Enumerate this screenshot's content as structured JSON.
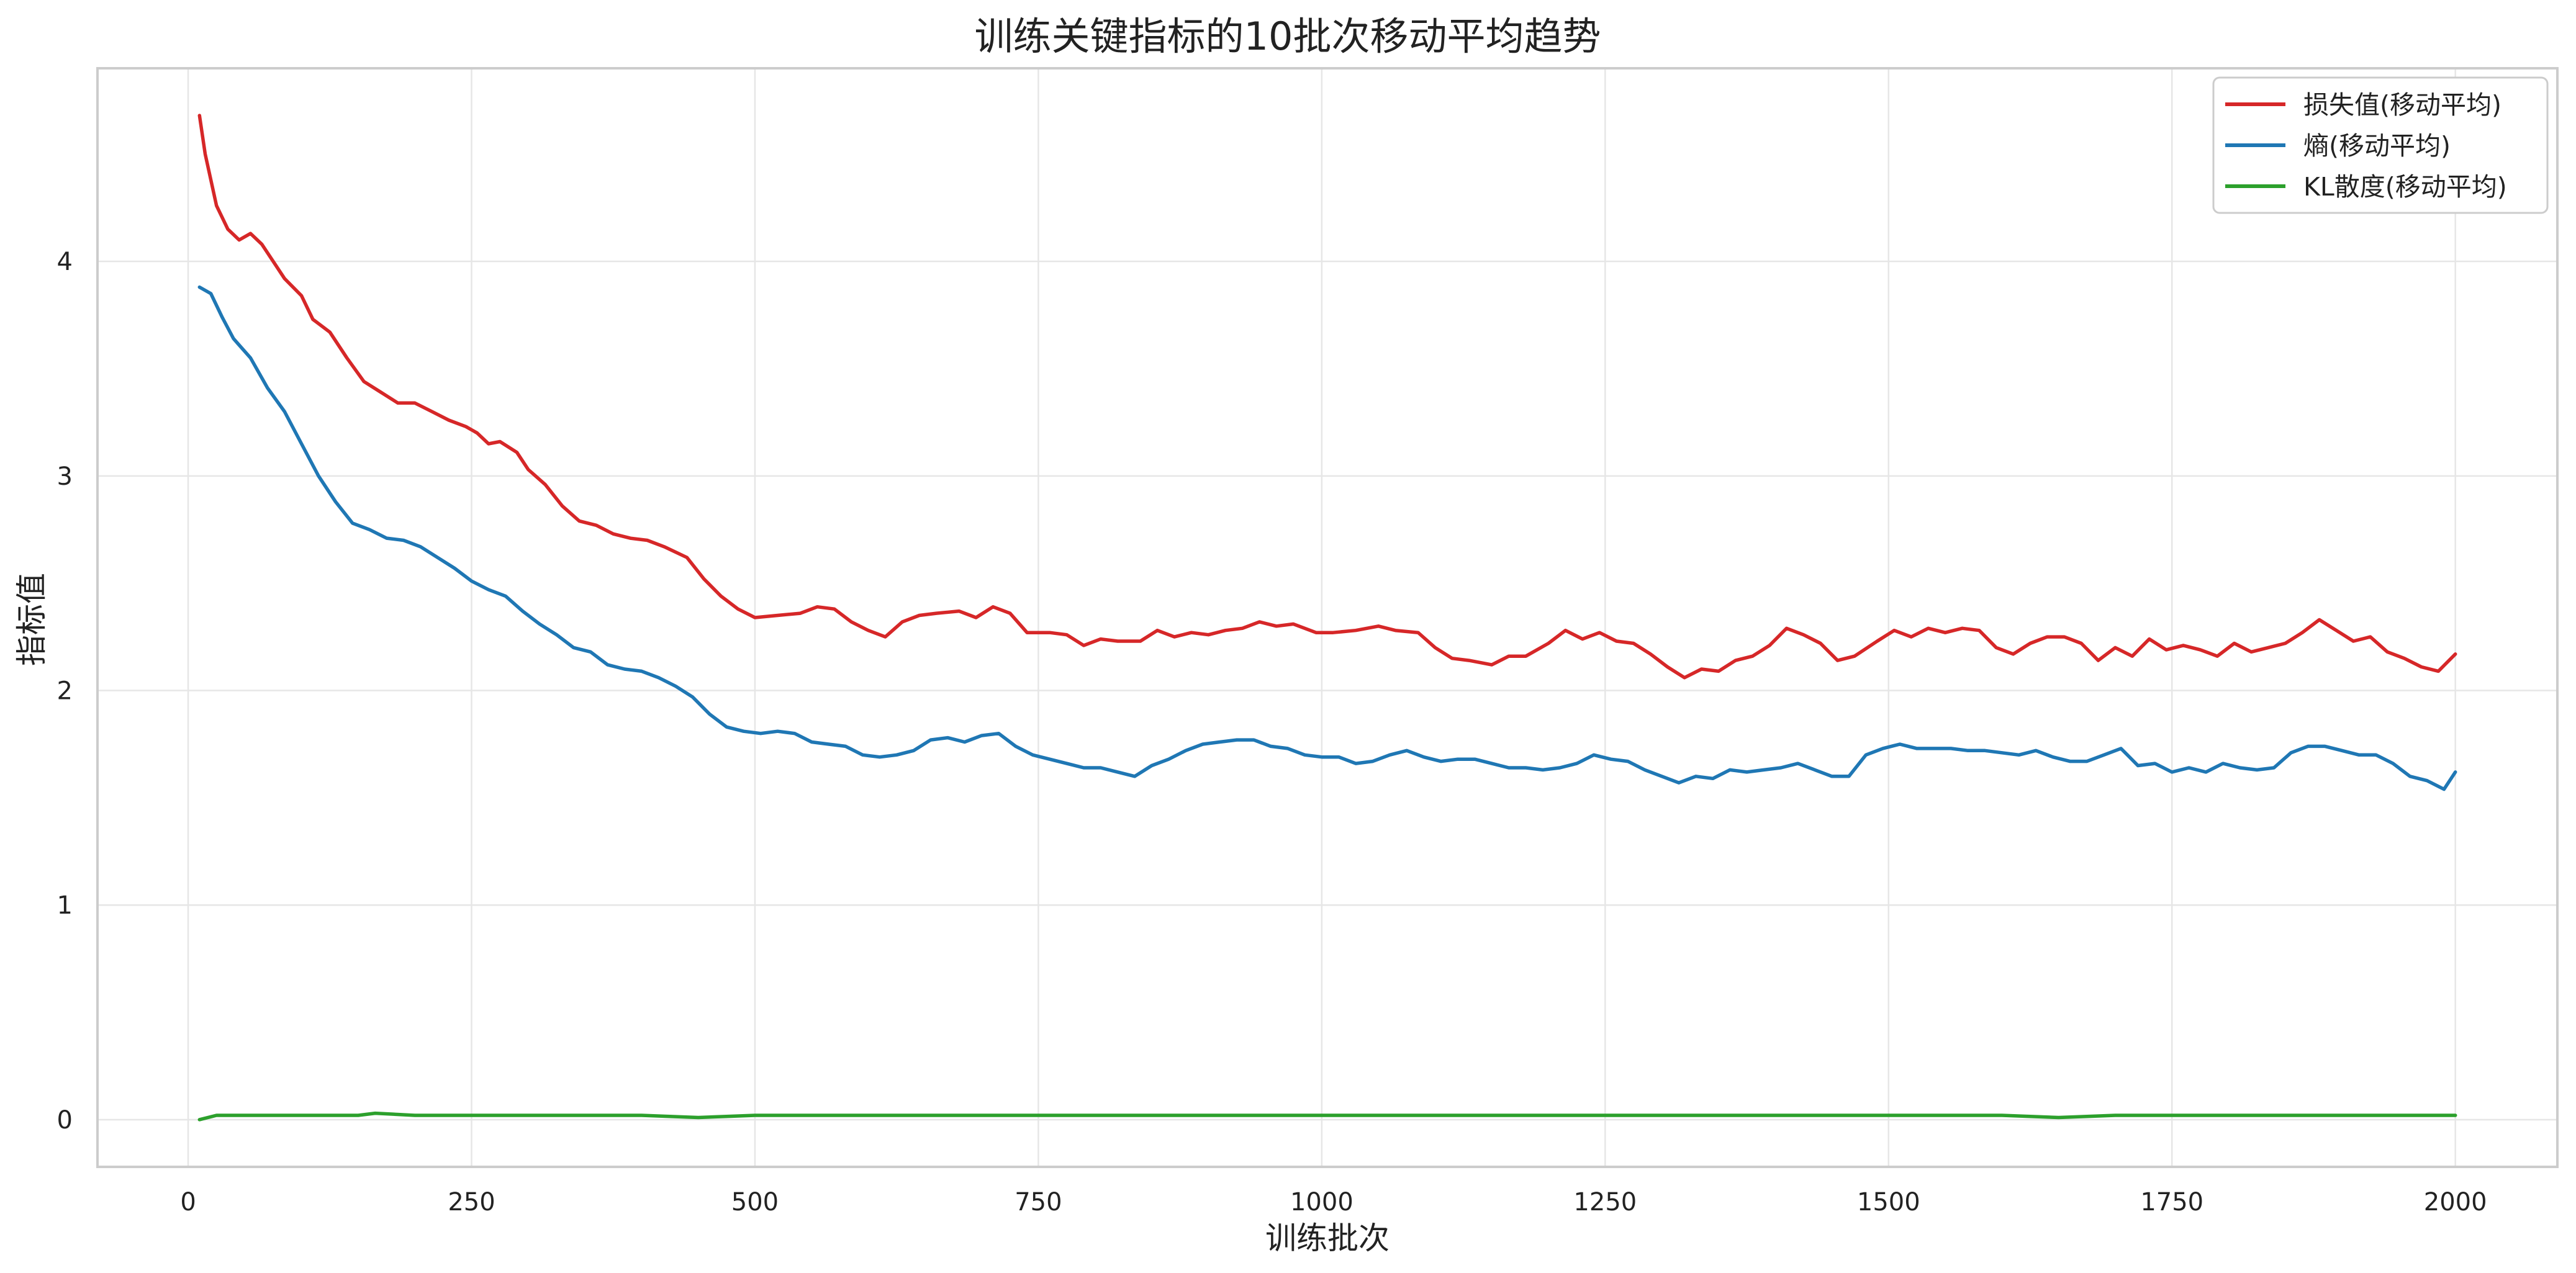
{
  "chart_data": {
    "type": "line",
    "title": "训练关键指标的10批次移动平均趋势",
    "xlabel": "训练批次",
    "ylabel": "指标值",
    "xlim": [
      -80,
      2090
    ],
    "ylim": [
      -0.22,
      4.9
    ],
    "x_ticks": [
      0,
      250,
      500,
      750,
      1000,
      1250,
      1500,
      1750,
      2000
    ],
    "x_tick_labels": [
      "0",
      "250",
      "500",
      "750",
      "1000",
      "1250",
      "1500",
      "1750",
      "2000"
    ],
    "y_ticks": [
      0,
      1,
      2,
      3,
      4
    ],
    "y_tick_labels": [
      "0",
      "1",
      "2",
      "3",
      "4"
    ],
    "grid": true,
    "legend_position": "top-right",
    "series": [
      {
        "name": "损失值(移动平均)",
        "color": "#d62728",
        "points": [
          [
            10,
            4.68
          ],
          [
            15,
            4.5
          ],
          [
            25,
            4.26
          ],
          [
            35,
            4.15
          ],
          [
            45,
            4.1
          ],
          [
            55,
            4.13
          ],
          [
            65,
            4.08
          ],
          [
            75,
            4.0
          ],
          [
            85,
            3.92
          ],
          [
            100,
            3.84
          ],
          [
            110,
            3.73
          ],
          [
            125,
            3.67
          ],
          [
            140,
            3.55
          ],
          [
            155,
            3.44
          ],
          [
            170,
            3.39
          ],
          [
            185,
            3.34
          ],
          [
            200,
            3.34
          ],
          [
            215,
            3.3
          ],
          [
            230,
            3.26
          ],
          [
            245,
            3.23
          ],
          [
            255,
            3.2
          ],
          [
            265,
            3.15
          ],
          [
            275,
            3.16
          ],
          [
            290,
            3.11
          ],
          [
            300,
            3.03
          ],
          [
            315,
            2.96
          ],
          [
            330,
            2.86
          ],
          [
            345,
            2.79
          ],
          [
            360,
            2.77
          ],
          [
            375,
            2.73
          ],
          [
            390,
            2.71
          ],
          [
            405,
            2.7
          ],
          [
            420,
            2.67
          ],
          [
            440,
            2.62
          ],
          [
            455,
            2.52
          ],
          [
            470,
            2.44
          ],
          [
            485,
            2.38
          ],
          [
            500,
            2.34
          ],
          [
            520,
            2.35
          ],
          [
            540,
            2.36
          ],
          [
            555,
            2.39
          ],
          [
            570,
            2.38
          ],
          [
            585,
            2.32
          ],
          [
            600,
            2.28
          ],
          [
            615,
            2.25
          ],
          [
            630,
            2.32
          ],
          [
            645,
            2.35
          ],
          [
            660,
            2.36
          ],
          [
            680,
            2.37
          ],
          [
            695,
            2.34
          ],
          [
            710,
            2.39
          ],
          [
            725,
            2.36
          ],
          [
            740,
            2.27
          ],
          [
            760,
            2.27
          ],
          [
            775,
            2.26
          ],
          [
            790,
            2.21
          ],
          [
            805,
            2.24
          ],
          [
            820,
            2.23
          ],
          [
            840,
            2.23
          ],
          [
            855,
            2.28
          ],
          [
            870,
            2.25
          ],
          [
            885,
            2.27
          ],
          [
            900,
            2.26
          ],
          [
            915,
            2.28
          ],
          [
            930,
            2.29
          ],
          [
            945,
            2.32
          ],
          [
            960,
            2.3
          ],
          [
            975,
            2.31
          ],
          [
            995,
            2.27
          ],
          [
            1010,
            2.27
          ],
          [
            1030,
            2.28
          ],
          [
            1050,
            2.3
          ],
          [
            1065,
            2.28
          ],
          [
            1085,
            2.27
          ],
          [
            1100,
            2.2
          ],
          [
            1115,
            2.15
          ],
          [
            1130,
            2.14
          ],
          [
            1150,
            2.12
          ],
          [
            1165,
            2.16
          ],
          [
            1180,
            2.16
          ],
          [
            1200,
            2.22
          ],
          [
            1215,
            2.28
          ],
          [
            1230,
            2.24
          ],
          [
            1245,
            2.27
          ],
          [
            1260,
            2.23
          ],
          [
            1275,
            2.22
          ],
          [
            1290,
            2.17
          ],
          [
            1305,
            2.11
          ],
          [
            1320,
            2.06
          ],
          [
            1335,
            2.1
          ],
          [
            1350,
            2.09
          ],
          [
            1365,
            2.14
          ],
          [
            1380,
            2.16
          ],
          [
            1395,
            2.21
          ],
          [
            1410,
            2.29
          ],
          [
            1425,
            2.26
          ],
          [
            1440,
            2.22
          ],
          [
            1455,
            2.14
          ],
          [
            1470,
            2.16
          ],
          [
            1490,
            2.23
          ],
          [
            1505,
            2.28
          ],
          [
            1520,
            2.25
          ],
          [
            1535,
            2.29
          ],
          [
            1550,
            2.27
          ],
          [
            1565,
            2.29
          ],
          [
            1580,
            2.28
          ],
          [
            1595,
            2.2
          ],
          [
            1610,
            2.17
          ],
          [
            1625,
            2.22
          ],
          [
            1640,
            2.25
          ],
          [
            1655,
            2.25
          ],
          [
            1670,
            2.22
          ],
          [
            1685,
            2.14
          ],
          [
            1700,
            2.2
          ],
          [
            1715,
            2.16
          ],
          [
            1730,
            2.24
          ],
          [
            1745,
            2.19
          ],
          [
            1760,
            2.21
          ],
          [
            1775,
            2.19
          ],
          [
            1790,
            2.16
          ],
          [
            1805,
            2.22
          ],
          [
            1820,
            2.18
          ],
          [
            1835,
            2.2
          ],
          [
            1850,
            2.22
          ],
          [
            1865,
            2.27
          ],
          [
            1880,
            2.33
          ],
          [
            1895,
            2.28
          ],
          [
            1910,
            2.23
          ],
          [
            1925,
            2.25
          ],
          [
            1940,
            2.18
          ],
          [
            1955,
            2.15
          ],
          [
            1970,
            2.11
          ],
          [
            1985,
            2.09
          ],
          [
            2000,
            2.17
          ]
        ]
      },
      {
        "name": "熵(移动平均)",
        "color": "#1f77b4",
        "points": [
          [
            10,
            3.88
          ],
          [
            20,
            3.85
          ],
          [
            30,
            3.74
          ],
          [
            40,
            3.64
          ],
          [
            55,
            3.55
          ],
          [
            70,
            3.41
          ],
          [
            85,
            3.3
          ],
          [
            100,
            3.15
          ],
          [
            115,
            3.0
          ],
          [
            130,
            2.88
          ],
          [
            145,
            2.78
          ],
          [
            160,
            2.75
          ],
          [
            175,
            2.71
          ],
          [
            190,
            2.7
          ],
          [
            205,
            2.67
          ],
          [
            220,
            2.62
          ],
          [
            235,
            2.57
          ],
          [
            250,
            2.51
          ],
          [
            265,
            2.47
          ],
          [
            280,
            2.44
          ],
          [
            295,
            2.37
          ],
          [
            310,
            2.31
          ],
          [
            325,
            2.26
          ],
          [
            340,
            2.2
          ],
          [
            355,
            2.18
          ],
          [
            370,
            2.12
          ],
          [
            385,
            2.1
          ],
          [
            400,
            2.09
          ],
          [
            415,
            2.06
          ],
          [
            430,
            2.02
          ],
          [
            445,
            1.97
          ],
          [
            460,
            1.89
          ],
          [
            475,
            1.83
          ],
          [
            490,
            1.81
          ],
          [
            505,
            1.8
          ],
          [
            520,
            1.81
          ],
          [
            535,
            1.8
          ],
          [
            550,
            1.76
          ],
          [
            565,
            1.75
          ],
          [
            580,
            1.74
          ],
          [
            595,
            1.7
          ],
          [
            610,
            1.69
          ],
          [
            625,
            1.7
          ],
          [
            640,
            1.72
          ],
          [
            655,
            1.77
          ],
          [
            670,
            1.78
          ],
          [
            685,
            1.76
          ],
          [
            700,
            1.79
          ],
          [
            715,
            1.8
          ],
          [
            730,
            1.74
          ],
          [
            745,
            1.7
          ],
          [
            760,
            1.68
          ],
          [
            775,
            1.66
          ],
          [
            790,
            1.64
          ],
          [
            805,
            1.64
          ],
          [
            820,
            1.62
          ],
          [
            835,
            1.6
          ],
          [
            850,
            1.65
          ],
          [
            865,
            1.68
          ],
          [
            880,
            1.72
          ],
          [
            895,
            1.75
          ],
          [
            910,
            1.76
          ],
          [
            925,
            1.77
          ],
          [
            940,
            1.77
          ],
          [
            955,
            1.74
          ],
          [
            970,
            1.73
          ],
          [
            985,
            1.7
          ],
          [
            1000,
            1.69
          ],
          [
            1015,
            1.69
          ],
          [
            1030,
            1.66
          ],
          [
            1045,
            1.67
          ],
          [
            1060,
            1.7
          ],
          [
            1075,
            1.72
          ],
          [
            1090,
            1.69
          ],
          [
            1105,
            1.67
          ],
          [
            1120,
            1.68
          ],
          [
            1135,
            1.68
          ],
          [
            1150,
            1.66
          ],
          [
            1165,
            1.64
          ],
          [
            1180,
            1.64
          ],
          [
            1195,
            1.63
          ],
          [
            1210,
            1.64
          ],
          [
            1225,
            1.66
          ],
          [
            1240,
            1.7
          ],
          [
            1255,
            1.68
          ],
          [
            1270,
            1.67
          ],
          [
            1285,
            1.63
          ],
          [
            1300,
            1.6
          ],
          [
            1315,
            1.57
          ],
          [
            1330,
            1.6
          ],
          [
            1345,
            1.59
          ],
          [
            1360,
            1.63
          ],
          [
            1375,
            1.62
          ],
          [
            1390,
            1.63
          ],
          [
            1405,
            1.64
          ],
          [
            1420,
            1.66
          ],
          [
            1435,
            1.63
          ],
          [
            1450,
            1.6
          ],
          [
            1465,
            1.6
          ],
          [
            1480,
            1.7
          ],
          [
            1495,
            1.73
          ],
          [
            1510,
            1.75
          ],
          [
            1525,
            1.73
          ],
          [
            1540,
            1.73
          ],
          [
            1555,
            1.73
          ],
          [
            1570,
            1.72
          ],
          [
            1585,
            1.72
          ],
          [
            1600,
            1.71
          ],
          [
            1615,
            1.7
          ],
          [
            1630,
            1.72
          ],
          [
            1645,
            1.69
          ],
          [
            1660,
            1.67
          ],
          [
            1675,
            1.67
          ],
          [
            1690,
            1.7
          ],
          [
            1705,
            1.73
          ],
          [
            1720,
            1.65
          ],
          [
            1735,
            1.66
          ],
          [
            1750,
            1.62
          ],
          [
            1765,
            1.64
          ],
          [
            1780,
            1.62
          ],
          [
            1795,
            1.66
          ],
          [
            1810,
            1.64
          ],
          [
            1825,
            1.63
          ],
          [
            1840,
            1.64
          ],
          [
            1855,
            1.71
          ],
          [
            1870,
            1.74
          ],
          [
            1885,
            1.74
          ],
          [
            1900,
            1.72
          ],
          [
            1915,
            1.7
          ],
          [
            1930,
            1.7
          ],
          [
            1945,
            1.66
          ],
          [
            1960,
            1.6
          ],
          [
            1975,
            1.58
          ],
          [
            1990,
            1.54
          ],
          [
            2000,
            1.62
          ]
        ]
      },
      {
        "name": "KL散度(移动平均)",
        "color": "#2ca02c",
        "points": [
          [
            10,
            0.0
          ],
          [
            25,
            0.02
          ],
          [
            50,
            0.02
          ],
          [
            75,
            0.02
          ],
          [
            100,
            0.02
          ],
          [
            150,
            0.02
          ],
          [
            165,
            0.03
          ],
          [
            200,
            0.02
          ],
          [
            250,
            0.02
          ],
          [
            300,
            0.02
          ],
          [
            350,
            0.02
          ],
          [
            400,
            0.02
          ],
          [
            450,
            0.01
          ],
          [
            500,
            0.02
          ],
          [
            550,
            0.02
          ],
          [
            600,
            0.02
          ],
          [
            650,
            0.02
          ],
          [
            700,
            0.02
          ],
          [
            750,
            0.02
          ],
          [
            800,
            0.02
          ],
          [
            850,
            0.02
          ],
          [
            900,
            0.02
          ],
          [
            950,
            0.02
          ],
          [
            1000,
            0.02
          ],
          [
            1050,
            0.02
          ],
          [
            1100,
            0.02
          ],
          [
            1150,
            0.02
          ],
          [
            1200,
            0.02
          ],
          [
            1250,
            0.02
          ],
          [
            1300,
            0.02
          ],
          [
            1350,
            0.02
          ],
          [
            1400,
            0.02
          ],
          [
            1450,
            0.02
          ],
          [
            1500,
            0.02
          ],
          [
            1550,
            0.02
          ],
          [
            1600,
            0.02
          ],
          [
            1650,
            0.01
          ],
          [
            1700,
            0.02
          ],
          [
            1750,
            0.02
          ],
          [
            1800,
            0.02
          ],
          [
            1850,
            0.02
          ],
          [
            1900,
            0.02
          ],
          [
            1950,
            0.02
          ],
          [
            2000,
            0.02
          ]
        ]
      }
    ]
  }
}
